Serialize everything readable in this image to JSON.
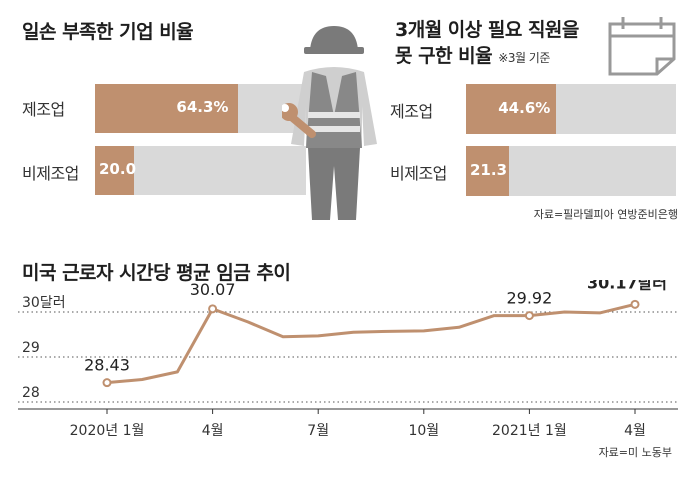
{
  "panel1": {
    "title": "일손 부족한 기업 비율",
    "categories": [
      "제조업",
      "비제조업"
    ],
    "values": [
      64.3,
      20.0
    ],
    "value_labels": [
      "64.3%",
      "20.0"
    ]
  },
  "panel2": {
    "title_line1": "3개월 이상 필요 직원을",
    "title_line2": "못 구한 비율",
    "note": "※3월 기준",
    "categories": [
      "제조업",
      "비제조업"
    ],
    "values": [
      44.6,
      21.3
    ],
    "value_labels": [
      "44.6%",
      "21.3"
    ],
    "source": "자료=필라델피아 연방준비은행"
  },
  "chart_data": {
    "type": "line",
    "title": "미국 근로자 시간당 평균 임금 추이",
    "x": [
      "2020-01",
      "2020-02",
      "2020-03",
      "2020-04",
      "2020-05",
      "2020-06",
      "2020-07",
      "2020-08",
      "2020-09",
      "2020-10",
      "2020-11",
      "2020-12",
      "2021-01",
      "2021-02",
      "2021-03",
      "2021-04"
    ],
    "values": [
      28.43,
      28.5,
      28.67,
      30.07,
      29.78,
      29.45,
      29.47,
      29.55,
      29.57,
      29.58,
      29.66,
      29.92,
      29.92,
      30.0,
      29.98,
      30.17
    ],
    "xtick_labels": [
      "2020년 1월",
      "4월",
      "7월",
      "10월",
      "2021년 1월",
      "4월"
    ],
    "ytick_labels": [
      "30달러",
      "29",
      "28"
    ],
    "ytick_values": [
      30,
      29,
      28
    ],
    "ylim": [
      28,
      30
    ],
    "annotations": [
      {
        "label": "28.43",
        "index": 0
      },
      {
        "label": "30.07",
        "index": 3
      },
      {
        "label": "29.92",
        "index": 12
      },
      {
        "label": "30.17달러",
        "index": 15
      }
    ],
    "source": "자료=미 노동부",
    "colors": {
      "line": "#bf906f",
      "bar_fill": "#bf906f",
      "bar_bg": "#d9d9d9",
      "grid": "#555555"
    },
    "icons": [
      "worker-icon",
      "calendar-icon"
    ]
  }
}
